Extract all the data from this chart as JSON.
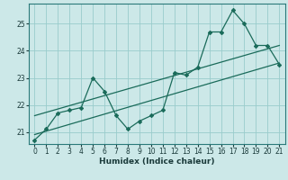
{
  "xlabel": "Humidex (Indice chaleur)",
  "bg_color": "#cce8e8",
  "grid_color": "#99cccc",
  "line_color": "#1a6b5a",
  "xlim": [
    -0.5,
    21.5
  ],
  "ylim": [
    20.55,
    25.75
  ],
  "yticks": [
    21,
    22,
    23,
    24,
    25
  ],
  "xticks": [
    0,
    1,
    2,
    3,
    4,
    5,
    6,
    7,
    8,
    9,
    10,
    11,
    12,
    13,
    14,
    15,
    16,
    17,
    18,
    19,
    20,
    21
  ],
  "jagged": {
    "x": [
      0,
      1,
      2,
      3,
      4,
      5,
      6,
      7,
      8,
      9,
      10,
      11,
      12,
      13,
      14,
      15,
      16,
      17,
      18,
      19,
      20,
      21
    ],
    "y": [
      20.7,
      21.1,
      21.7,
      21.8,
      21.9,
      23.0,
      22.5,
      21.6,
      21.1,
      21.4,
      21.6,
      21.8,
      23.2,
      23.1,
      23.4,
      24.7,
      24.7,
      25.5,
      25.0,
      24.2,
      24.2,
      23.5
    ]
  },
  "trend_low": {
    "x": [
      0,
      21
    ],
    "y": [
      20.9,
      23.55
    ]
  },
  "trend_high": {
    "x": [
      0,
      21
    ],
    "y": [
      21.6,
      24.2
    ]
  }
}
